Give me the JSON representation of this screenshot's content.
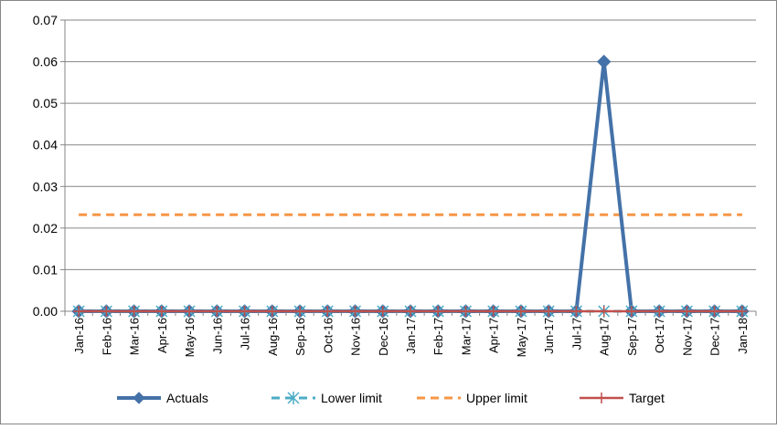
{
  "chart_data": {
    "type": "line",
    "title": "",
    "xlabel": "",
    "ylabel": "",
    "categories": [
      "Jan-16",
      "Feb-16",
      "Mar-16",
      "Apr-16",
      "May-16",
      "Jun-16",
      "Jul-16",
      "Aug-16",
      "Sep-16",
      "Oct-16",
      "Nov-16",
      "Dec-16",
      "Jan-17",
      "Feb-17",
      "Mar-17",
      "Apr-17",
      "May-17",
      "Jun-17",
      "Jul-17",
      "Aug-17",
      "Sep-17",
      "Oct-17",
      "Nov-17",
      "Dec-17",
      "Jan-18"
    ],
    "ylim": [
      0,
      0.07
    ],
    "yticks": [
      "0.00",
      "0.01",
      "0.02",
      "0.03",
      "0.04",
      "0.05",
      "0.06",
      "0.07"
    ],
    "ytick_values": [
      0,
      0.01,
      0.02,
      0.03,
      0.04,
      0.05,
      0.06,
      0.07
    ],
    "grid": true,
    "legend_position": "bottom",
    "series": [
      {
        "name": "Actuals",
        "color": "#4472A8",
        "marker": "diamond",
        "values": [
          0,
          0,
          0,
          0,
          0,
          0,
          0,
          0,
          0,
          0,
          0,
          0,
          0,
          0,
          0,
          0,
          0,
          0,
          0,
          0.06,
          0,
          0,
          0,
          0,
          0
        ]
      },
      {
        "name": "Lower limit",
        "color": "#4BACC6",
        "marker": "asterisk",
        "values": [
          0,
          0,
          0,
          0,
          0,
          0,
          0,
          0,
          0,
          0,
          0,
          0,
          0,
          0,
          0,
          0,
          0,
          0,
          0,
          0,
          0,
          0,
          0,
          0,
          0
        ]
      },
      {
        "name": "Upper limit",
        "color": "#F79646",
        "marker": "none",
        "values": [
          0.0232,
          0.0232,
          0.0232,
          0.0232,
          0.0232,
          0.0232,
          0.0232,
          0.0232,
          0.0232,
          0.0232,
          0.0232,
          0.0232,
          0.0232,
          0.0232,
          0.0232,
          0.0232,
          0.0232,
          0.0232,
          0.0232,
          0.0232,
          0.0232,
          0.0232,
          0.0232,
          0.0232,
          0.0232
        ]
      },
      {
        "name": "Target",
        "color": "#C0504D",
        "marker": "plus",
        "values": [
          0,
          0,
          0,
          0,
          0,
          0,
          0,
          0,
          0,
          0,
          0,
          0,
          0,
          0,
          0,
          0,
          0,
          0,
          0,
          0,
          0,
          0,
          0,
          0,
          0
        ]
      }
    ]
  }
}
